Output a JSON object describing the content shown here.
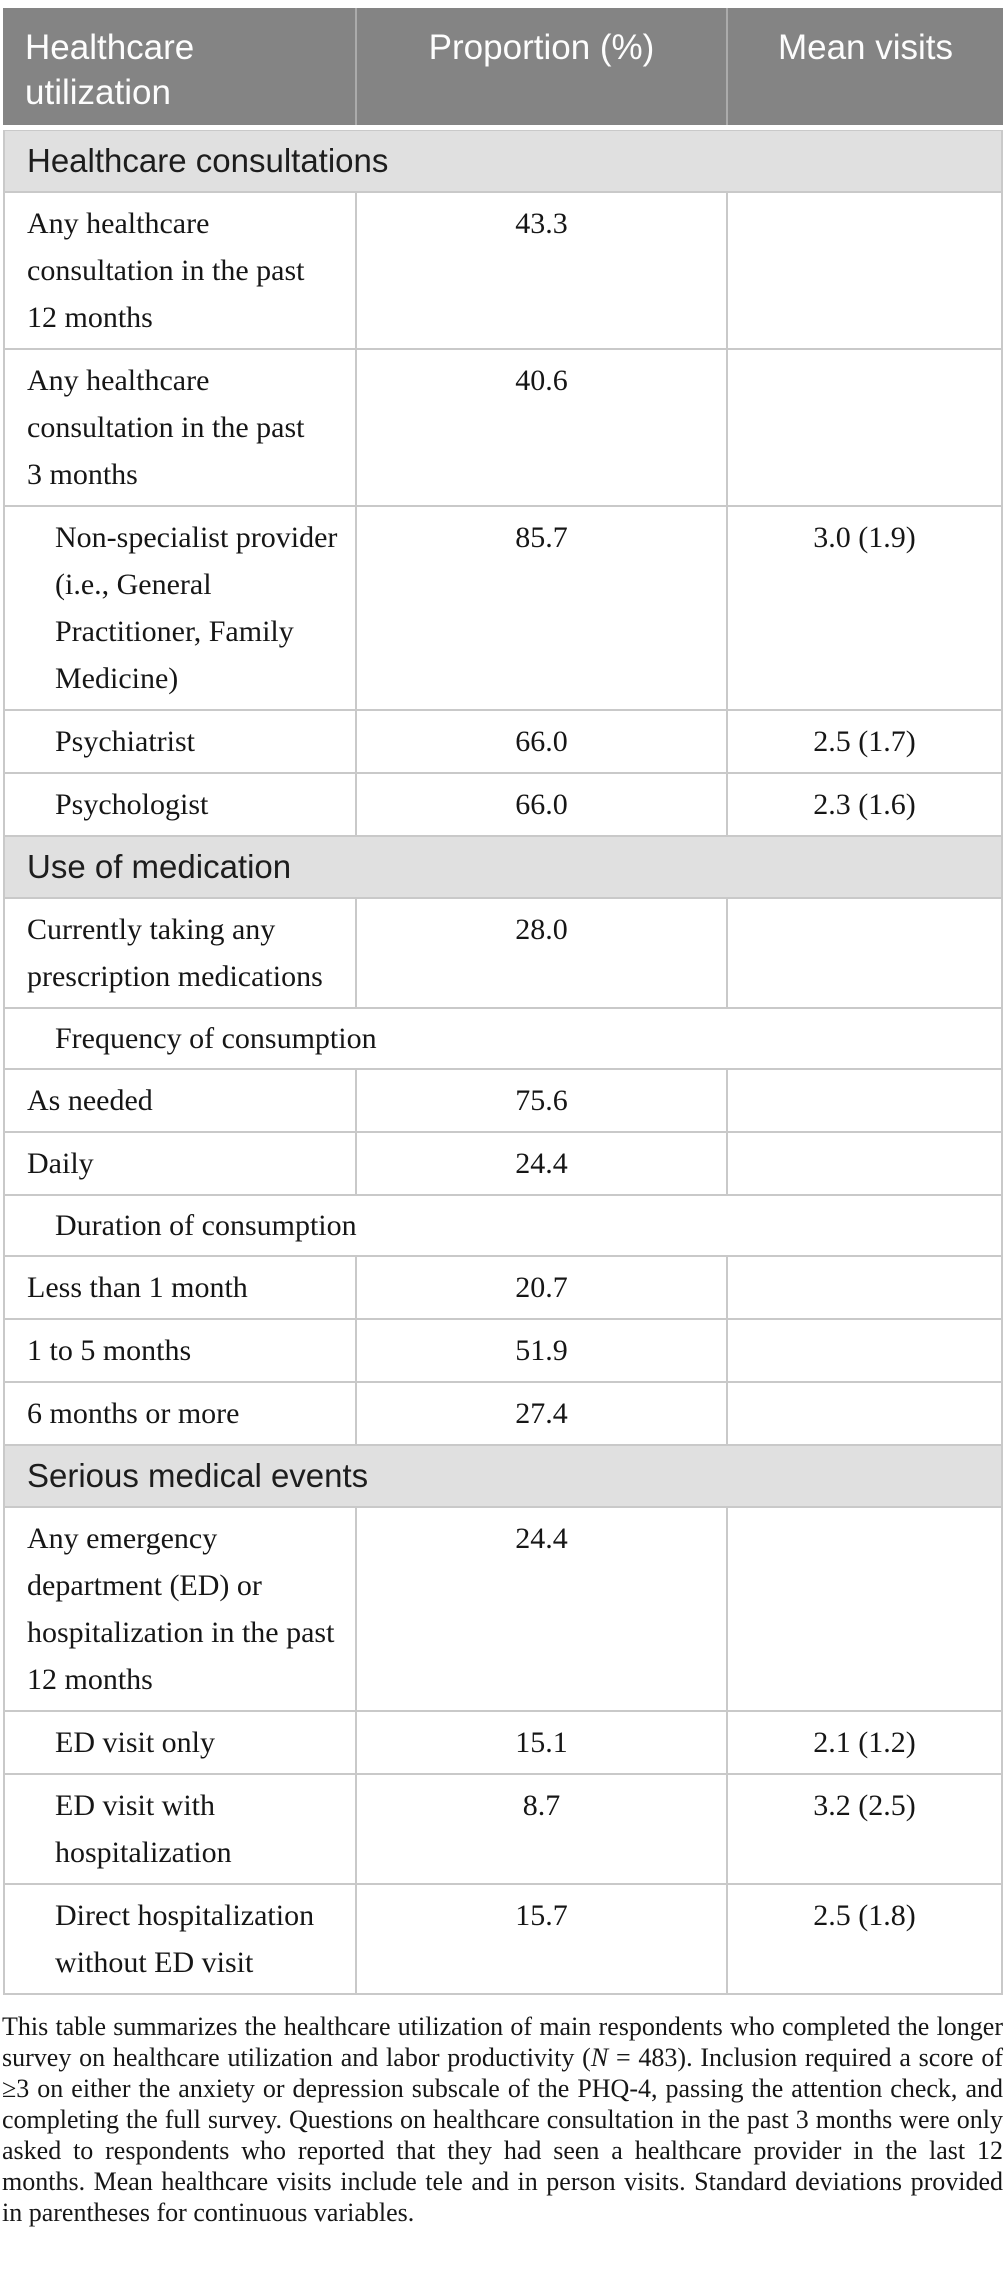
{
  "colors": {
    "header_bg": "#848484",
    "header_text": "#fdfdfd",
    "header_divider": "#ababab",
    "section_bg": "#e0e0e0",
    "section_text": "#1d1d1d",
    "border": "#c9c9c9",
    "text": "#161616",
    "page_bg": "#ffffff"
  },
  "table": {
    "columns": [
      {
        "label": "Healthcare\nutilization"
      },
      {
        "label": "Proportion (%)"
      },
      {
        "label": "Mean visits"
      }
    ],
    "sections": [
      {
        "title": "Healthcare consultations",
        "rows": [
          {
            "label": "Any healthcare\nconsultation in the past\n12 months",
            "indent": false,
            "proportion": "43.3",
            "mean_visits": ""
          },
          {
            "label": "Any healthcare\nconsultation in the past\n3 months",
            "indent": false,
            "proportion": "40.6",
            "mean_visits": ""
          },
          {
            "label": "Non-specialist provider\n(i.e., General\nPractitioner, Family\nMedicine)",
            "indent": true,
            "proportion": "85.7",
            "mean_visits": "3.0 (1.9)"
          },
          {
            "label": "Psychiatrist",
            "indent": true,
            "proportion": "66.0",
            "mean_visits": "2.5 (1.7)"
          },
          {
            "label": "Psychologist",
            "indent": true,
            "proportion": "66.0",
            "mean_visits": "2.3 (1.6)"
          }
        ]
      },
      {
        "title": "Use of medication",
        "rows": [
          {
            "label": "Currently taking any\nprescription medications",
            "indent": false,
            "proportion": "28.0",
            "mean_visits": ""
          },
          {
            "label": "Frequency of consumption",
            "subheader": true
          },
          {
            "label": "As needed",
            "indent": false,
            "proportion": "75.6",
            "mean_visits": ""
          },
          {
            "label": "Daily",
            "indent": false,
            "proportion": "24.4",
            "mean_visits": ""
          },
          {
            "label": "Duration of consumption",
            "subheader": true
          },
          {
            "label": "Less than 1 month",
            "indent": false,
            "proportion": "20.7",
            "mean_visits": ""
          },
          {
            "label": "1 to 5 months",
            "indent": false,
            "proportion": "51.9",
            "mean_visits": ""
          },
          {
            "label": "6 months or more",
            "indent": false,
            "proportion": "27.4",
            "mean_visits": ""
          }
        ]
      },
      {
        "title": "Serious medical events",
        "rows": [
          {
            "label": "Any emergency\ndepartment (ED) or\nhospitalization in the past\n12 months",
            "indent": false,
            "proportion": "24.4",
            "mean_visits": ""
          },
          {
            "label": "ED visit only",
            "indent": true,
            "proportion": "15.1",
            "mean_visits": "2.1 (1.2)"
          },
          {
            "label": "ED visit with\nhospitalization",
            "indent": true,
            "proportion": "8.7",
            "mean_visits": "3.2 (2.5)"
          },
          {
            "label": "Direct hospitalization\nwithout ED visit",
            "indent": true,
            "proportion": "15.7",
            "mean_visits": "2.5 (1.8)"
          }
        ]
      }
    ]
  },
  "footnote": {
    "segments": [
      {
        "text": "This table summarizes the healthcare utilization of main respondents who completed the longer survey on healthcare utilization and labor productivity ("
      },
      {
        "text": "N",
        "style": "italic"
      },
      {
        "text": " = 483). Inclusion required a score of ≥3 on either the anxiety or depression subscale of the PHQ-4, passing the attention check, and completing the full survey. Questions on healthcare consultation in the past 3 months were only asked to respondents who reported that they had seen a healthcare provider in the last 12 months. Mean healthcare visits include tele and in person visits. Standard deviations provided in parentheses for continuous variables."
      }
    ]
  }
}
